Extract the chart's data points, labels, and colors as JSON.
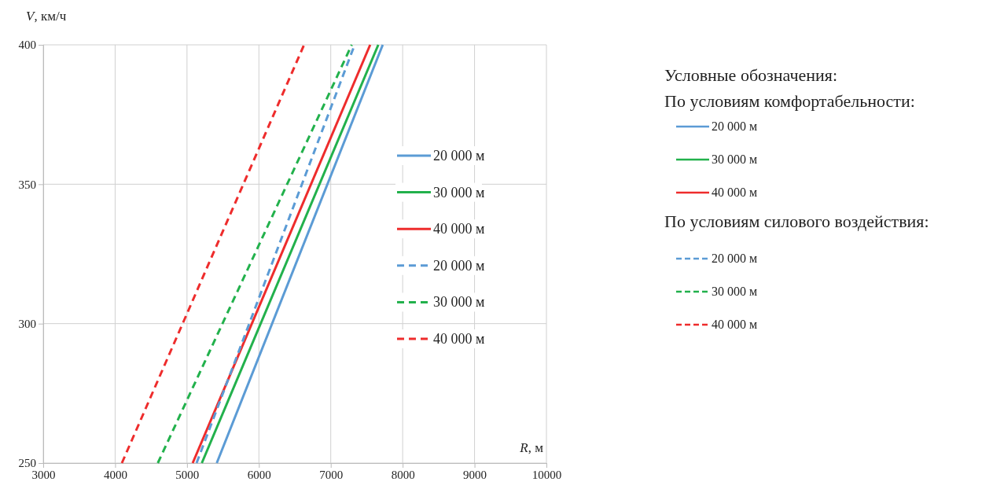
{
  "chart_data": {
    "type": "line",
    "xlabel": "R, м",
    "ylabel": "V, км/ч",
    "xlim": [
      3000,
      10000
    ],
    "xticks": [
      3000,
      4000,
      5000,
      6000,
      7000,
      8000,
      9000,
      10000
    ],
    "ylim": [
      250,
      400
    ],
    "yticks": [
      250,
      300,
      350,
      400
    ],
    "grid": true,
    "legend": "right",
    "marker": "none",
    "annotations": [
      "Условные обозначения:",
      "По условиям комфортабельности:",
      "По условиям силового воздействия:"
    ],
    "series": [
      {
        "name": "20 000 м",
        "color": "#5b9bd5",
        "line_style": "solid",
        "x": [
          5414,
          7723
        ],
        "values": [
          250,
          400
        ]
      },
      {
        "name": "30 000 м",
        "color": "#22b14c",
        "line_style": "solid",
        "x": [
          5206,
          7661
        ],
        "values": [
          250,
          400
        ]
      },
      {
        "name": "40 000 м",
        "color": "#ee2c2c",
        "line_style": "solid",
        "x": [
          5079,
          7548
        ],
        "values": [
          250,
          400
        ]
      },
      {
        "name": "20 000 м",
        "color": "#5b9bd5",
        "line_style": "dashed",
        "x": [
          5133,
          7332
        ],
        "values": [
          250,
          400
        ]
      },
      {
        "name": "30 000 м",
        "color": "#22b14c",
        "line_style": "dashed",
        "x": [
          4594,
          7292
        ],
        "values": [
          250,
          400
        ]
      },
      {
        "name": "40 000 м",
        "color": "#ee2c2c",
        "line_style": "dashed",
        "x": [
          4094,
          6629
        ],
        "values": [
          250,
          400
        ]
      }
    ]
  }
}
